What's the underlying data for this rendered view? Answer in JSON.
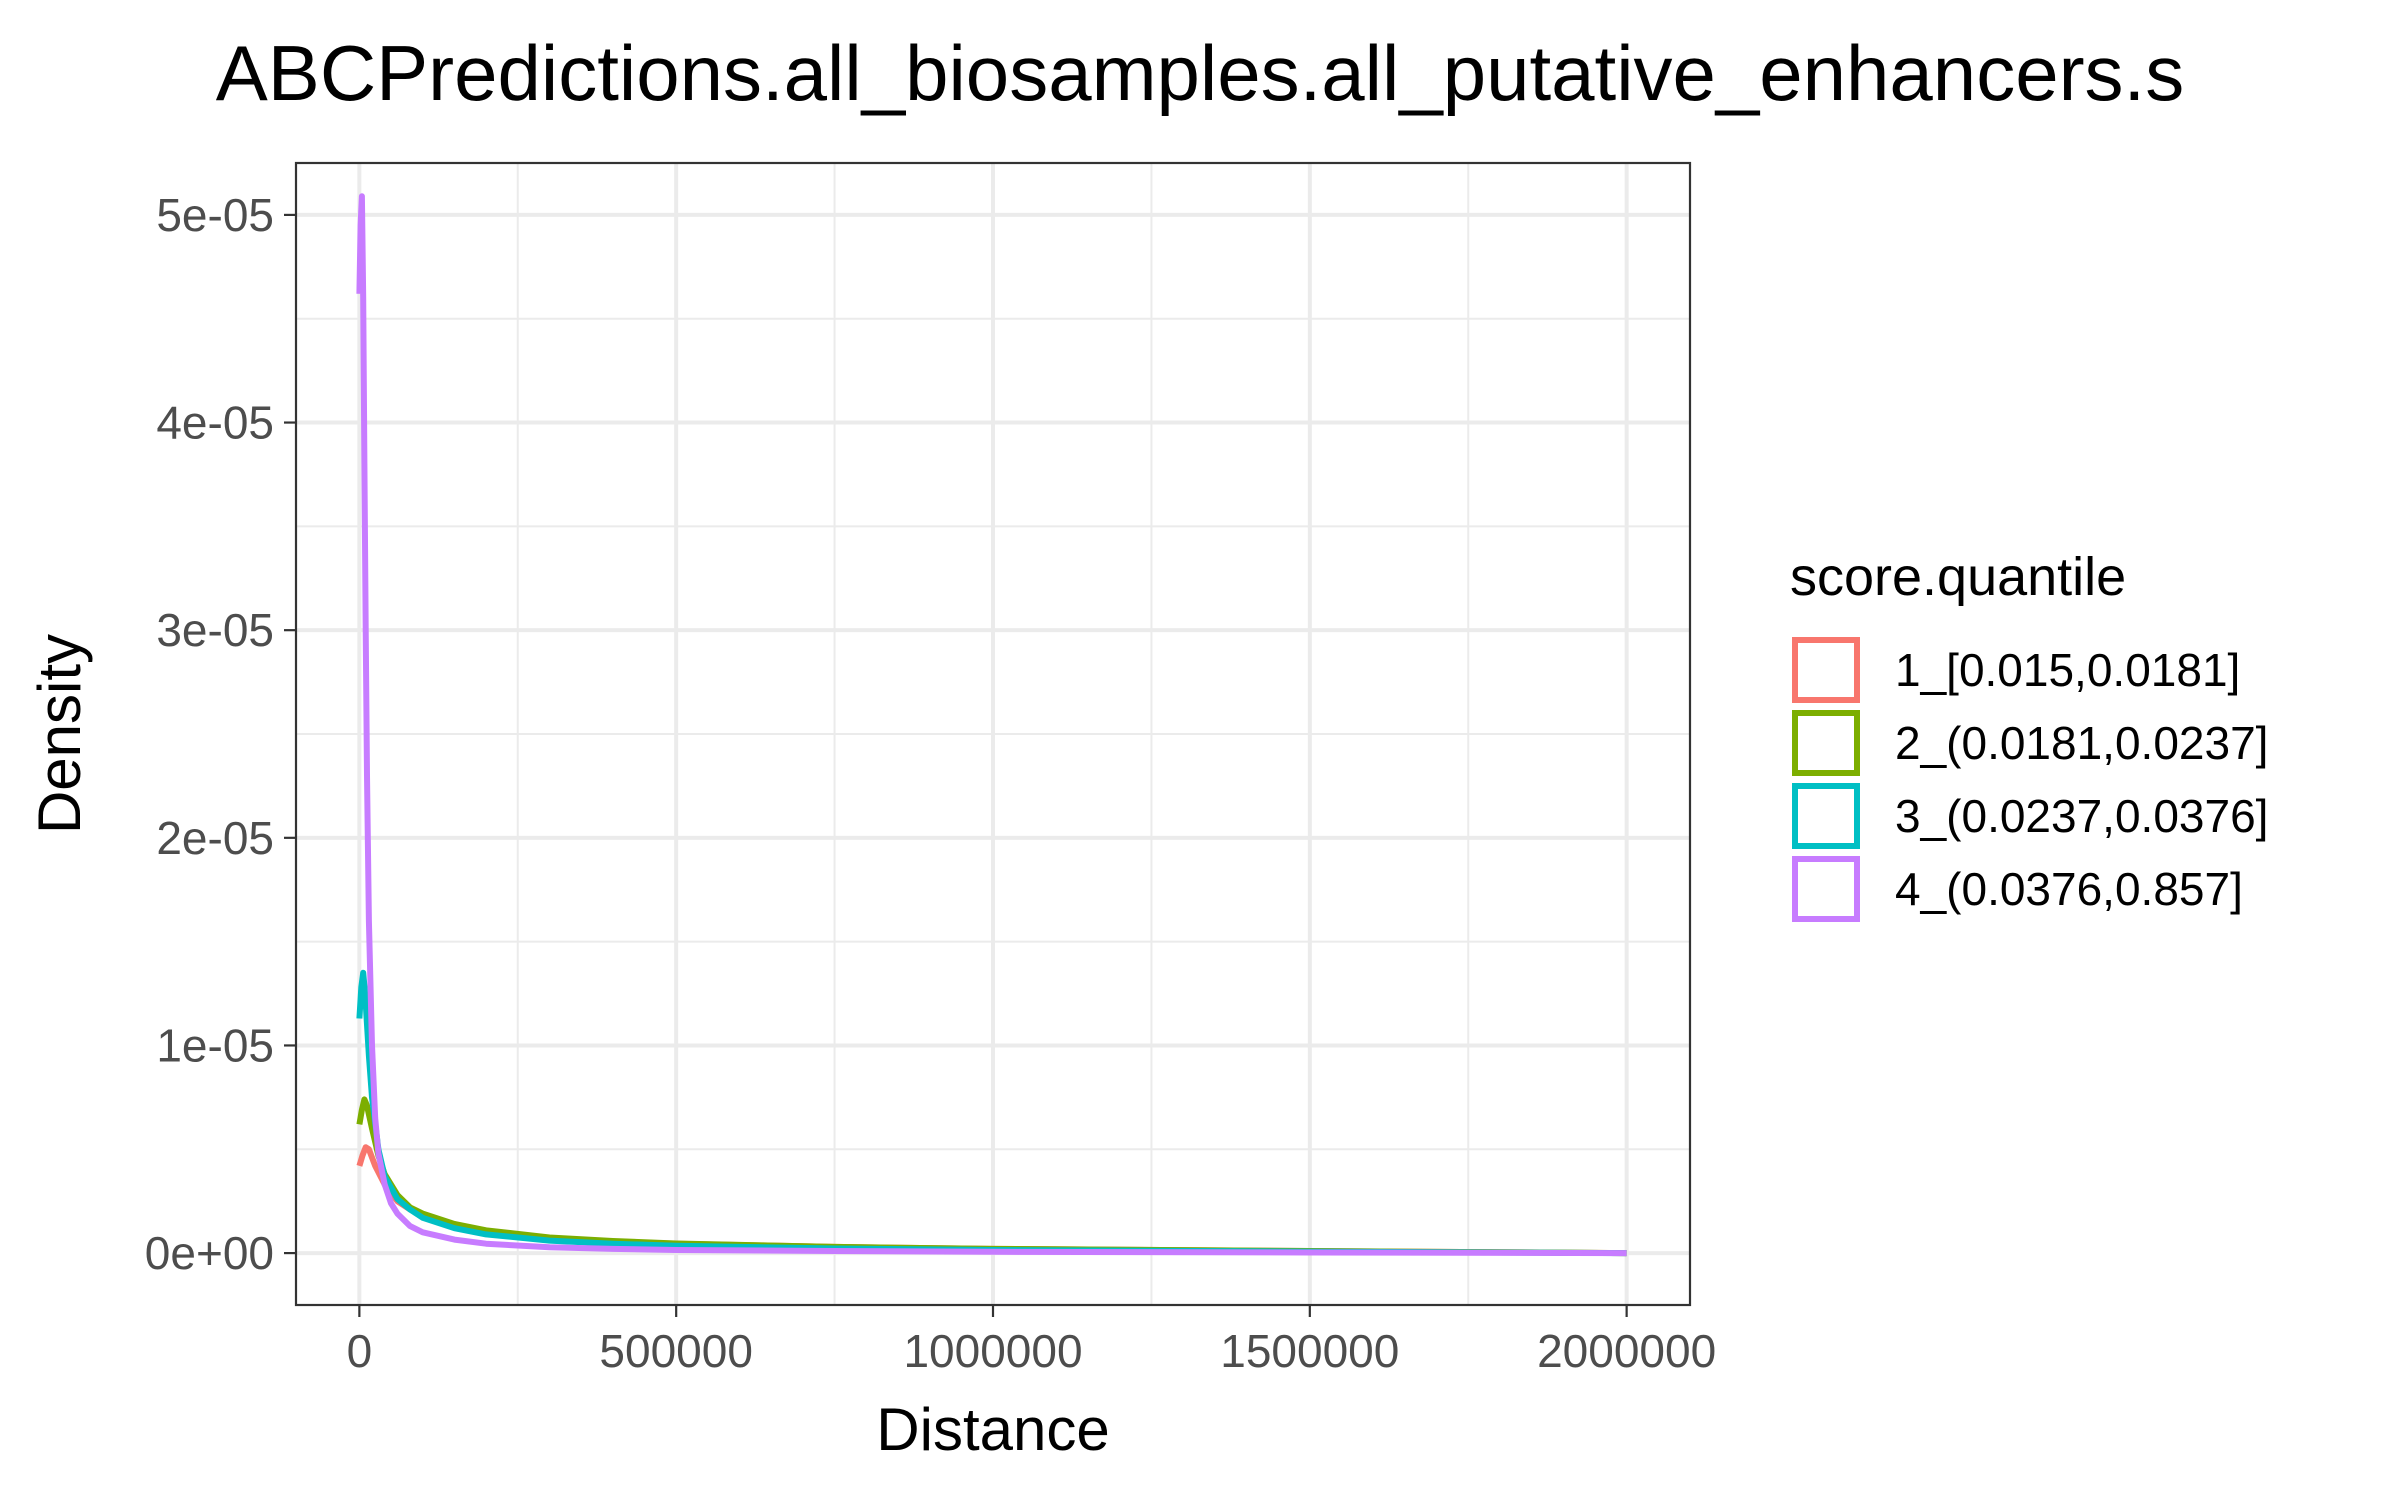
{
  "chart_data": {
    "type": "line",
    "title": "ABCPredictions.all_biosamples.all_putative_enhancers.s",
    "xlabel": "Distance",
    "ylabel": "Density",
    "xlim": [
      -100000,
      2100000
    ],
    "ylim": [
      -2.5e-06,
      5.25e-05
    ],
    "x_ticks": [
      0,
      500000,
      1000000,
      1500000,
      2000000
    ],
    "x_tick_labels": [
      "0",
      "500000",
      "1000000",
      "1500000",
      "2000000"
    ],
    "y_ticks": [
      0,
      1e-05,
      2e-05,
      3e-05,
      4e-05,
      5e-05
    ],
    "y_tick_labels": [
      "0e+00",
      "1e-05",
      "2e-05",
      "3e-05",
      "4e-05",
      "5e-05"
    ],
    "grid": true,
    "theme": "bw",
    "legend": {
      "title": "score.quantile",
      "position": "right"
    },
    "series": [
      {
        "name": "1_[0.015,0.0181]",
        "color": "#F8766D",
        "x": [
          0,
          5000,
          10000,
          15000,
          25000,
          40000,
          60000,
          80000,
          100000,
          150000,
          200000,
          300000,
          400000,
          500000,
          750000,
          1000000,
          1500000,
          2000000
        ],
        "y": [
          4.2e-06,
          4.7e-06,
          5.1e-06,
          5e-06,
          4.2e-06,
          3.3e-06,
          2.5e-06,
          2.1e-06,
          1.8e-06,
          1.3e-06,
          1e-06,
          7e-07,
          5.5e-07,
          4.5e-07,
          3e-07,
          2e-07,
          1e-07,
          0
        ]
      },
      {
        "name": "2_(0.0181,0.0237]",
        "color": "#7CAE00",
        "x": [
          0,
          4000,
          8000,
          12000,
          20000,
          30000,
          40000,
          60000,
          80000,
          100000,
          150000,
          200000,
          300000,
          400000,
          500000,
          750000,
          1000000,
          1500000,
          2000000
        ],
        "y": [
          6.2e-06,
          6.9e-06,
          7.4e-06,
          7.1e-06,
          6e-06,
          4.7e-06,
          3.8e-06,
          2.8e-06,
          2.2e-06,
          1.9e-06,
          1.4e-06,
          1.1e-06,
          7.5e-07,
          5.8e-07,
          4.6e-07,
          3e-07,
          2e-07,
          1e-07,
          0
        ]
      },
      {
        "name": "3_(0.0237,0.0376]",
        "color": "#00BFC4",
        "x": [
          0,
          3000,
          6000,
          9000,
          15000,
          20000,
          30000,
          40000,
          60000,
          80000,
          100000,
          150000,
          200000,
          300000,
          400000,
          500000,
          750000,
          1000000,
          1500000,
          2000000
        ],
        "y": [
          1.13e-05,
          1.28e-05,
          1.35e-05,
          1.25e-05,
          9.5e-06,
          7.5e-06,
          5e-06,
          3.7e-06,
          2.6e-06,
          2.1e-06,
          1.7e-06,
          1.2e-06,
          9e-07,
          6e-07,
          4.5e-07,
          3.5e-07,
          2.2e-07,
          1.5e-07,
          7e-08,
          0
        ]
      },
      {
        "name": "4_(0.0376,0.857]",
        "color": "#C77CFF",
        "x": [
          0,
          2000,
          4000,
          6000,
          8000,
          10000,
          12000,
          15000,
          20000,
          25000,
          30000,
          40000,
          50000,
          60000,
          80000,
          100000,
          150000,
          200000,
          300000,
          400000,
          500000,
          750000,
          1000000,
          1500000,
          2000000
        ],
        "y": [
          4.62e-05,
          4.95e-05,
          5.09e-05,
          4.6e-05,
          3.8e-05,
          3e-05,
          2.3e-05,
          1.6e-05,
          1e-05,
          6.5e-06,
          4.8e-06,
          3.3e-06,
          2.4e-06,
          1.9e-06,
          1.3e-06,
          1e-06,
          6.5e-07,
          4.5e-07,
          2.8e-07,
          2e-07,
          1.5e-07,
          1e-07,
          6e-08,
          3e-08,
          0
        ]
      }
    ]
  }
}
